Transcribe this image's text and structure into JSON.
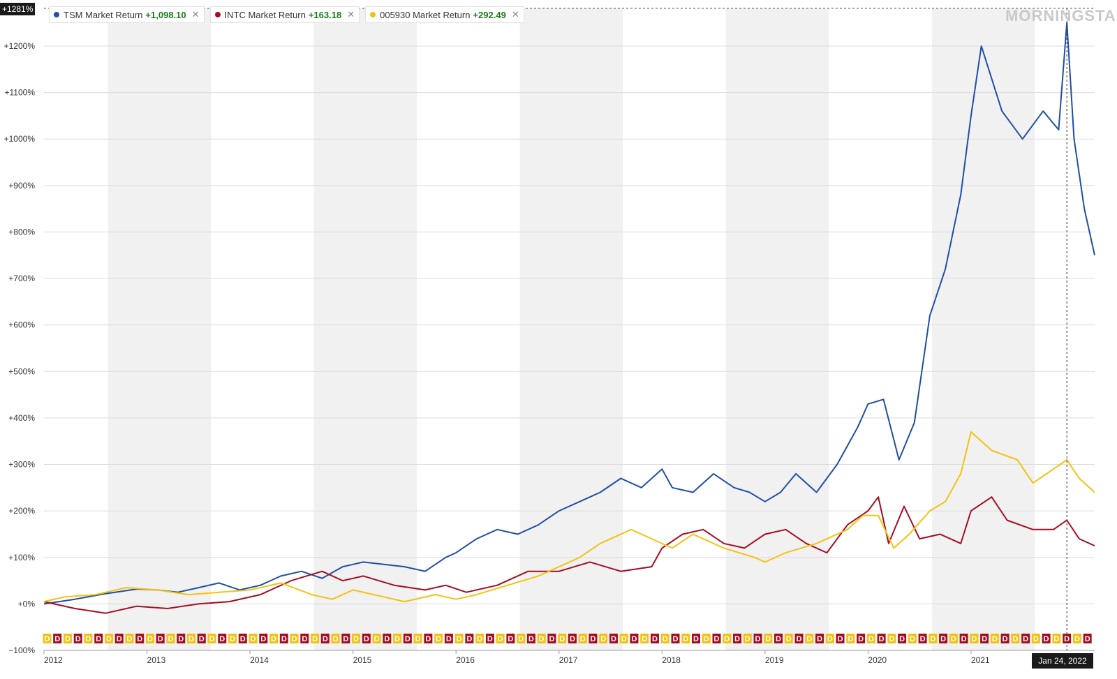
{
  "legend": [
    {
      "name": "TSM Market Return",
      "value": "+1,098.10",
      "color": "#1f4fa5"
    },
    {
      "name": "INTC Market Return",
      "value": "+163.18",
      "color": "#a50d22"
    },
    {
      "name": "005930 Market Return",
      "value": "+292.49",
      "color": "#f3c211"
    }
  ],
  "logo": "MORNINGSTAR",
  "y_current_label": "+1281%",
  "x_current_label": "Jan 24, 2022",
  "colors": {
    "tsm": "#1f4fa5",
    "intc": "#a50d22",
    "samsung": "#f3c211",
    "band": "#f1f1f1",
    "grid": "#dcdcdc",
    "positive": "#1b7a1b"
  },
  "chart_data": {
    "type": "line",
    "xlabel": "",
    "ylabel": "",
    "ylim": [
      -100,
      1281
    ],
    "y_ticks": [
      {
        "value": 1200,
        "label": "+1200%"
      },
      {
        "value": 1100,
        "label": "+1100%"
      },
      {
        "value": 1000,
        "label": "+1000%"
      },
      {
        "value": 900,
        "label": "+900%"
      },
      {
        "value": 800,
        "label": "+800%"
      },
      {
        "value": 700,
        "label": "+700%"
      },
      {
        "value": 600,
        "label": "+600%"
      },
      {
        "value": 500,
        "label": "+500%"
      },
      {
        "value": 400,
        "label": "+400%"
      },
      {
        "value": 300,
        "label": "+300%"
      },
      {
        "value": 200,
        "label": "+200%"
      },
      {
        "value": 100,
        "label": "+100%"
      },
      {
        "value": 0,
        "label": "+0%"
      },
      {
        "value": -100,
        "label": "−100%"
      }
    ],
    "xlim": [
      2012.0,
      2022.2
    ],
    "x_ticks": [
      {
        "value": 2012,
        "label": "2012"
      },
      {
        "value": 2013,
        "label": "2013"
      },
      {
        "value": 2014,
        "label": "2014"
      },
      {
        "value": 2015,
        "label": "2015"
      },
      {
        "value": 2016,
        "label": "2016"
      },
      {
        "value": 2017,
        "label": "2017"
      },
      {
        "value": 2018,
        "label": "2018"
      },
      {
        "value": 2019,
        "label": "2019"
      },
      {
        "value": 2020,
        "label": "2020"
      },
      {
        "value": 2021,
        "label": "2021"
      }
    ],
    "crosshair_x": 2021.93,
    "series": [
      {
        "name": "TSM Market Return",
        "color": "#1f4fa5",
        "x": [
          2012.0,
          2012.3,
          2012.6,
          2012.9,
          2013.1,
          2013.3,
          2013.5,
          2013.7,
          2013.9,
          2014.1,
          2014.3,
          2014.5,
          2014.7,
          2014.9,
          2015.1,
          2015.3,
          2015.5,
          2015.7,
          2015.9,
          2016.0,
          2016.2,
          2016.4,
          2016.6,
          2016.8,
          2017.0,
          2017.2,
          2017.4,
          2017.6,
          2017.8,
          2018.0,
          2018.1,
          2018.3,
          2018.5,
          2018.7,
          2018.85,
          2019.0,
          2019.15,
          2019.3,
          2019.5,
          2019.7,
          2019.9,
          2020.0,
          2020.15,
          2020.3,
          2020.45,
          2020.6,
          2020.75,
          2020.9,
          2021.0,
          2021.1,
          2021.3,
          2021.5,
          2021.7,
          2021.85,
          2021.93,
          2022.0,
          2022.1,
          2022.2
        ],
        "y": [
          0,
          10,
          22,
          32,
          30,
          25,
          35,
          45,
          30,
          40,
          60,
          70,
          55,
          80,
          90,
          85,
          80,
          70,
          100,
          110,
          140,
          160,
          150,
          170,
          200,
          220,
          240,
          270,
          250,
          290,
          250,
          240,
          280,
          250,
          240,
          220,
          240,
          280,
          240,
          300,
          380,
          430,
          440,
          310,
          390,
          620,
          720,
          880,
          1050,
          1200,
          1060,
          1000,
          1060,
          1020,
          1250,
          1000,
          850,
          750
        ]
      },
      {
        "name": "INTC Market Return",
        "color": "#a50d22",
        "x": [
          2012.0,
          2012.3,
          2012.6,
          2012.9,
          2013.2,
          2013.5,
          2013.8,
          2014.1,
          2014.4,
          2014.7,
          2014.9,
          2015.1,
          2015.4,
          2015.7,
          2015.9,
          2016.1,
          2016.4,
          2016.7,
          2017.0,
          2017.3,
          2017.6,
          2017.9,
          2018.0,
          2018.2,
          2018.4,
          2018.6,
          2018.8,
          2019.0,
          2019.2,
          2019.4,
          2019.6,
          2019.8,
          2020.0,
          2020.1,
          2020.2,
          2020.35,
          2020.5,
          2020.7,
          2020.9,
          2021.0,
          2021.2,
          2021.35,
          2021.6,
          2021.8,
          2021.93,
          2022.05,
          2022.2
        ],
        "y": [
          5,
          -10,
          -20,
          -5,
          -10,
          0,
          5,
          20,
          50,
          70,
          50,
          60,
          40,
          30,
          40,
          25,
          40,
          70,
          70,
          90,
          70,
          80,
          120,
          150,
          160,
          130,
          120,
          150,
          160,
          130,
          110,
          170,
          200,
          230,
          130,
          210,
          140,
          150,
          130,
          200,
          230,
          180,
          160,
          160,
          180,
          140,
          125
        ]
      },
      {
        "name": "005930 Market Return",
        "color": "#f3c211",
        "x": [
          2012.0,
          2012.2,
          2012.5,
          2012.8,
          2013.1,
          2013.4,
          2013.7,
          2014.0,
          2014.3,
          2014.6,
          2014.8,
          2015.0,
          2015.3,
          2015.5,
          2015.8,
          2016.0,
          2016.2,
          2016.5,
          2016.8,
          2017.0,
          2017.2,
          2017.4,
          2017.7,
          2017.9,
          2018.1,
          2018.3,
          2018.6,
          2018.9,
          2019.0,
          2019.2,
          2019.5,
          2019.8,
          2019.95,
          2020.1,
          2020.25,
          2020.4,
          2020.6,
          2020.75,
          2020.9,
          2021.0,
          2021.2,
          2021.45,
          2021.6,
          2021.8,
          2021.93,
          2022.05,
          2022.2
        ],
        "y": [
          5,
          15,
          20,
          35,
          30,
          20,
          25,
          30,
          45,
          20,
          10,
          30,
          15,
          5,
          20,
          10,
          20,
          40,
          60,
          80,
          100,
          130,
          160,
          140,
          120,
          150,
          120,
          100,
          90,
          110,
          130,
          160,
          190,
          190,
          120,
          150,
          200,
          220,
          280,
          370,
          330,
          310,
          260,
          290,
          310,
          270,
          240
        ]
      }
    ],
    "dividend_markers": "D"
  }
}
